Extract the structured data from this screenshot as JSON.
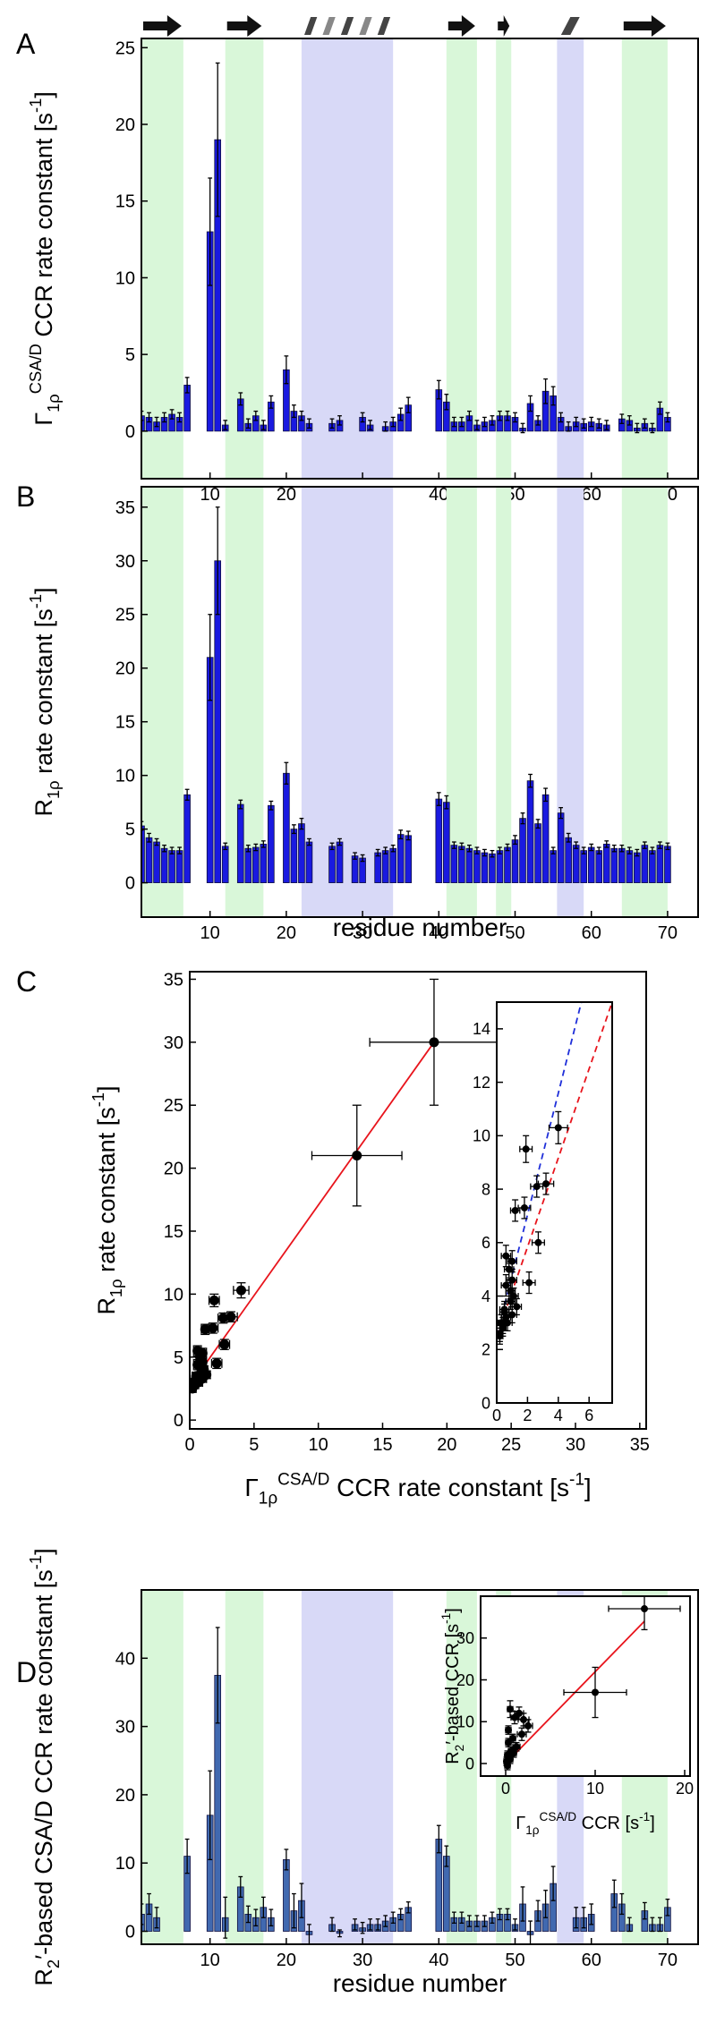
{
  "chart_data": [
    {
      "type": "bar",
      "label": "A",
      "ylabel": [
        {
          "t": "Γ"
        },
        {
          "t": "1ρ",
          "pos": "sub"
        },
        {
          "t": "CSA/D",
          "pos": "sup"
        },
        {
          "t": " CCR rate constant [s"
        },
        {
          "t": "-1",
          "pos": "sup"
        },
        {
          "t": "]"
        }
      ],
      "x": [
        1,
        2,
        3,
        4,
        5,
        6,
        7,
        8,
        9,
        10,
        11,
        12,
        13,
        14,
        15,
        16,
        17,
        18,
        19,
        20,
        21,
        22,
        23,
        24,
        25,
        26,
        27,
        28,
        29,
        30,
        31,
        32,
        33,
        34,
        35,
        36,
        37,
        38,
        39,
        40,
        41,
        42,
        43,
        44,
        45,
        46,
        47,
        48,
        49,
        50,
        51,
        52,
        53,
        54,
        55,
        56,
        57,
        58,
        59,
        60,
        61,
        62,
        63,
        64,
        65,
        66,
        67,
        68,
        69,
        70
      ],
      "values": [
        1.0,
        0.9,
        0.6,
        0.9,
        1.1,
        0.9,
        3.0,
        null,
        null,
        13,
        19,
        0.4,
        null,
        2.1,
        0.5,
        1.0,
        0.4,
        1.9,
        null,
        4.0,
        1.3,
        1.0,
        0.5,
        null,
        null,
        0.5,
        0.7,
        null,
        null,
        0.9,
        0.4,
        null,
        0.3,
        0.6,
        1.1,
        1.7,
        null,
        null,
        null,
        2.7,
        1.9,
        0.6,
        0.6,
        1.0,
        0.4,
        0.6,
        0.7,
        1.0,
        1.0,
        0.9,
        0.2,
        1.8,
        0.7,
        2.6,
        2.3,
        0.9,
        0.3,
        0.6,
        0.5,
        0.6,
        0.5,
        0.4,
        null,
        0.8,
        0.7,
        0.2,
        0.5,
        0.2,
        1.5,
        0.9
      ],
      "errors": [
        0.3,
        0.3,
        0.3,
        0.3,
        0.3,
        0.3,
        0.5,
        null,
        null,
        3.5,
        5,
        0.3,
        null,
        0.4,
        0.3,
        0.3,
        0.3,
        0.4,
        null,
        0.9,
        0.4,
        0.3,
        0.3,
        null,
        null,
        0.3,
        0.3,
        null,
        null,
        0.3,
        0.3,
        null,
        0.3,
        0.3,
        0.4,
        0.5,
        null,
        null,
        null,
        0.6,
        0.5,
        0.3,
        0.3,
        0.3,
        0.3,
        0.3,
        0.3,
        0.3,
        0.3,
        0.3,
        0.3,
        0.5,
        0.3,
        0.8,
        0.6,
        0.3,
        0.3,
        0.3,
        0.3,
        0.3,
        0.3,
        0.3,
        null,
        0.3,
        0.3,
        0.3,
        0.3,
        0.3,
        0.4,
        0.3
      ],
      "color": "#1a1ae0",
      "xlim": [
        1,
        74
      ],
      "ylim": [
        -3.1,
        25.6
      ],
      "xticks": [
        10,
        20,
        30,
        40,
        50,
        60,
        70
      ],
      "yticks": [
        0,
        5,
        10,
        15,
        20,
        25
      ],
      "strands": [
        [
          1,
          6.5
        ],
        [
          12,
          17
        ],
        [
          41,
          45
        ],
        [
          47.5,
          49.5
        ],
        [
          64,
          70
        ]
      ],
      "helices": [
        [
          22,
          34
        ],
        [
          55.5,
          59
        ]
      ],
      "strand_color": "#d9f7d9",
      "helix_color": "#d8d9f7",
      "structure_row": true
    },
    {
      "type": "bar",
      "label": "B",
      "ylabel": [
        {
          "t": "R"
        },
        {
          "t": "1ρ",
          "pos": "sub"
        },
        {
          "t": " rate constant [s"
        },
        {
          "t": "-1",
          "pos": "sup"
        },
        {
          "t": "]"
        }
      ],
      "xlabel": [
        {
          "t": "residue number"
        }
      ],
      "x": [
        1,
        2,
        3,
        4,
        5,
        6,
        7,
        8,
        9,
        10,
        11,
        12,
        13,
        14,
        15,
        16,
        17,
        18,
        19,
        20,
        21,
        22,
        23,
        24,
        25,
        26,
        27,
        28,
        29,
        30,
        31,
        32,
        33,
        34,
        35,
        36,
        37,
        38,
        39,
        40,
        41,
        42,
        43,
        44,
        45,
        46,
        47,
        48,
        49,
        50,
        51,
        52,
        53,
        54,
        55,
        56,
        57,
        58,
        59,
        60,
        61,
        62,
        63,
        64,
        65,
        66,
        67,
        68,
        69,
        70
      ],
      "values": [
        5.3,
        4.2,
        3.8,
        3.2,
        3.0,
        3.0,
        8.2,
        null,
        null,
        21,
        30,
        3.4,
        null,
        7.3,
        3.2,
        3.3,
        3.6,
        7.2,
        null,
        10.2,
        5.0,
        5.5,
        3.8,
        null,
        null,
        3.4,
        3.8,
        null,
        2.5,
        2.3,
        null,
        2.8,
        3.0,
        3.2,
        4.5,
        4.4,
        null,
        null,
        null,
        7.8,
        7.5,
        3.5,
        3.4,
        3.2,
        3.0,
        2.8,
        2.7,
        3.0,
        3.3,
        4.0,
        6.0,
        9.5,
        5.5,
        8.2,
        3.0,
        6.5,
        4.2,
        3.5,
        3.0,
        3.3,
        3.0,
        3.6,
        3.2,
        3.2,
        3.0,
        2.8,
        3.5,
        3.0,
        3.5,
        3.4
      ],
      "errors": [
        0.4,
        0.4,
        0.3,
        0.3,
        0.3,
        0.3,
        0.5,
        null,
        null,
        4,
        5,
        0.3,
        null,
        0.4,
        0.3,
        0.3,
        0.3,
        0.4,
        null,
        1.0,
        0.4,
        0.5,
        0.3,
        null,
        null,
        0.3,
        0.3,
        null,
        0.3,
        0.3,
        null,
        0.3,
        0.3,
        0.3,
        0.4,
        0.4,
        null,
        null,
        null,
        0.6,
        0.6,
        0.3,
        0.3,
        0.3,
        0.3,
        0.3,
        0.3,
        0.3,
        0.3,
        0.4,
        0.5,
        0.6,
        0.4,
        0.6,
        0.3,
        0.5,
        0.4,
        0.3,
        0.3,
        0.3,
        0.3,
        0.3,
        0.3,
        0.3,
        0.3,
        0.3,
        0.3,
        0.3,
        0.3,
        0.3
      ],
      "color": "#1a1ae0",
      "xlim": [
        1,
        74
      ],
      "ylim": [
        -3.2,
        36.9
      ],
      "xticks": [
        10,
        20,
        30,
        40,
        50,
        60,
        70
      ],
      "yticks": [
        0,
        5,
        10,
        15,
        20,
        25,
        30,
        35
      ],
      "strands": [
        [
          1,
          6.5
        ],
        [
          12,
          17
        ],
        [
          41,
          45
        ],
        [
          47.5,
          49.5
        ],
        [
          64,
          70
        ]
      ],
      "helices": [
        [
          22,
          34
        ],
        [
          55.5,
          59
        ]
      ],
      "strand_color": "#d9f7d9",
      "helix_color": "#d8d9f7"
    },
    {
      "type": "scatter",
      "label": "C",
      "ylabel": [
        {
          "t": "R"
        },
        {
          "t": "1ρ",
          "pos": "sub"
        },
        {
          "t": " rate constant [s"
        },
        {
          "t": "-1",
          "pos": "sup"
        },
        {
          "t": "]"
        }
      ],
      "xlabel": [
        {
          "t": "Γ"
        },
        {
          "t": "1ρ",
          "pos": "sub"
        },
        {
          "t": "CSA/D",
          "pos": "sup"
        },
        {
          "t": " CCR rate constant [s"
        },
        {
          "t": "-1",
          "pos": "sup"
        },
        {
          "t": "]"
        }
      ],
      "x": [
        13,
        19,
        4.0,
        1.9,
        2.7,
        3.2,
        1.8,
        1.2,
        2.6,
        1.0,
        0.6,
        0.9,
        1.1,
        0.5,
        0.3,
        0.4,
        0.6,
        0.9,
        1.0,
        0.2,
        0.5,
        0.7,
        1.0,
        0.4,
        0.6,
        0.3,
        0.8,
        0.2,
        2.1,
        1.3
      ],
      "y": [
        21,
        30,
        10.3,
        9.5,
        6.0,
        8.2,
        7.3,
        7.2,
        8.1,
        5.3,
        5.5,
        4.2,
        4.0,
        3.4,
        3.0,
        2.8,
        3.2,
        3.8,
        4.6,
        2.6,
        3.5,
        3.0,
        3.3,
        2.9,
        4.4,
        3.0,
        5.0,
        2.5,
        4.5,
        3.6
      ],
      "xerr": [
        3.5,
        5,
        0.6,
        0.4,
        0.4,
        0.5,
        0.4,
        0.3,
        0.4,
        0.3,
        0.3,
        0.3,
        0.3,
        0.3,
        0.2,
        0.2,
        0.3,
        0.3,
        0.3,
        0.2,
        0.3,
        0.3,
        0.3,
        0.2,
        0.3,
        0.2,
        0.3,
        0.2,
        0.4,
        0.3
      ],
      "yerr": [
        4,
        5,
        0.6,
        0.5,
        0.4,
        0.4,
        0.4,
        0.4,
        0.4,
        0.4,
        0.4,
        0.3,
        0.3,
        0.3,
        0.3,
        0.3,
        0.3,
        0.3,
        0.4,
        0.3,
        0.3,
        0.3,
        0.3,
        0.3,
        0.4,
        0.3,
        0.4,
        0.3,
        0.4,
        0.3
      ],
      "color": "#000000",
      "xlim": [
        0,
        35.5
      ],
      "ylim": [
        -0.7,
        35.6
      ],
      "xticks": [
        0,
        5,
        10,
        15,
        20,
        25,
        30,
        35
      ],
      "yticks": [
        0,
        5,
        10,
        15,
        20,
        25,
        30,
        35
      ],
      "lines": [
        {
          "x": [
            0,
            19
          ],
          "y": [
            2.7,
            30
          ],
          "color": "#e8141c"
        }
      ],
      "inset": {
        "xlim": [
          0,
          7.5
        ],
        "ylim": [
          0,
          15
        ],
        "xticks": [
          0,
          2,
          4,
          6
        ],
        "yticks": [
          0,
          2,
          4,
          6,
          8,
          10,
          12,
          14
        ],
        "lines": [
          {
            "x": [
              0,
              5.5
            ],
            "y": [
              2.5,
              15
            ],
            "color": "#1f2fd9",
            "dash": true
          },
          {
            "x": [
              0,
              7.5
            ],
            "y": [
              2.5,
              15
            ],
            "color": "#e8141c",
            "dash": true
          }
        ]
      }
    },
    {
      "type": "bar",
      "label": "D",
      "ylabel": [
        {
          "t": "R"
        },
        {
          "t": "2",
          "pos": "sub"
        },
        {
          "t": "′-based CSA/D CCR rate constant [s"
        },
        {
          "t": "-1",
          "pos": "sup"
        },
        {
          "t": "]"
        }
      ],
      "xlabel": [
        {
          "t": "residue number"
        }
      ],
      "x": [
        1,
        2,
        3,
        4,
        5,
        6,
        7,
        8,
        9,
        10,
        11,
        12,
        13,
        14,
        15,
        16,
        17,
        18,
        19,
        20,
        21,
        22,
        23,
        24,
        25,
        26,
        27,
        28,
        29,
        30,
        31,
        32,
        33,
        34,
        35,
        36,
        37,
        38,
        39,
        40,
        41,
        42,
        43,
        44,
        45,
        46,
        47,
        48,
        49,
        50,
        51,
        52,
        53,
        54,
        55,
        56,
        57,
        58,
        59,
        60,
        61,
        62,
        63,
        64,
        65,
        66,
        67,
        68,
        69,
        70
      ],
      "values": [
        2.5,
        4,
        2,
        null,
        null,
        null,
        11,
        null,
        null,
        17,
        37.5,
        2,
        null,
        6.5,
        2.5,
        2,
        3.5,
        2,
        null,
        10.5,
        3,
        4.5,
        -0.5,
        null,
        null,
        1,
        -0.3,
        null,
        1,
        0.5,
        1,
        1,
        1.5,
        2,
        2.5,
        3.5,
        null,
        null,
        null,
        13.5,
        11,
        2,
        2,
        1.5,
        1.5,
        1.5,
        2,
        2.5,
        2.5,
        1,
        4,
        -0.5,
        3,
        4,
        7,
        null,
        null,
        2,
        2,
        2.5,
        null,
        null,
        5.5,
        4,
        1,
        null,
        3,
        1,
        1,
        3.5
      ],
      "errors": [
        1.5,
        1.5,
        1.5,
        null,
        null,
        null,
        2.5,
        null,
        null,
        6.5,
        7,
        3,
        null,
        1.5,
        1.2,
        1.2,
        1.5,
        1.2,
        null,
        1.5,
        2.5,
        2.5,
        1.5,
        null,
        null,
        1,
        0.5,
        null,
        0.8,
        0.8,
        0.8,
        0.8,
        0.8,
        0.8,
        0.8,
        0.8,
        null,
        null,
        null,
        2,
        1.5,
        0.8,
        0.8,
        0.8,
        0.8,
        0.8,
        0.8,
        0.8,
        0.8,
        0.8,
        2.5,
        2,
        1.5,
        2,
        2.5,
        null,
        null,
        1.5,
        1.5,
        1.5,
        null,
        null,
        2,
        1.5,
        1,
        null,
        1.2,
        1,
        1,
        1.2
      ],
      "color": "#4169b0",
      "xlim": [
        1,
        74
      ],
      "ylim": [
        -1.9,
        50
      ],
      "xticks": [
        10,
        20,
        30,
        40,
        50,
        60,
        70
      ],
      "yticks": [
        0,
        10,
        20,
        30,
        40
      ],
      "strands": [
        [
          1,
          6.5
        ],
        [
          12,
          17
        ],
        [
          41,
          45
        ],
        [
          47.5,
          49.5
        ],
        [
          64,
          70
        ]
      ],
      "helices": [
        [
          22,
          34
        ],
        [
          55.5,
          59
        ]
      ],
      "strand_color": "#d9f7d9",
      "helix_color": "#d8d9f7",
      "inset": {
        "type": "scatter",
        "ylabel": [
          {
            "t": "R"
          },
          {
            "t": "2",
            "pos": "sub"
          },
          {
            "t": "′-based CCR [s"
          },
          {
            "t": "-1",
            "pos": "sup"
          },
          {
            "t": "]"
          }
        ],
        "xlabel": [
          {
            "t": "Γ"
          },
          {
            "t": "1ρ",
            "pos": "sub"
          },
          {
            "t": "CSA/D",
            "pos": "sup"
          },
          {
            "t": " CCR [s"
          },
          {
            "t": "-1",
            "pos": "sup"
          },
          {
            "t": "]"
          }
        ],
        "x": [
          15.5,
          10,
          1,
          1.5,
          2,
          0.5,
          0.3,
          0.8,
          0.2,
          1.2,
          0.6,
          0.4,
          0.9,
          0.1,
          0.3,
          2.5,
          1.8,
          0.7,
          0.5,
          0.2
        ],
        "y": [
          37,
          17,
          11,
          12,
          10.5,
          13,
          5,
          6,
          2,
          4,
          3,
          1.5,
          2.5,
          0.5,
          8,
          9,
          7,
          3,
          1,
          -0.5
        ],
        "xerr": [
          4,
          3.5,
          0.4,
          0.5,
          0.6,
          0.3,
          0.3,
          0.3,
          0.3,
          0.4,
          0.3,
          0.3,
          0.3,
          0.3,
          0.3,
          0.5,
          0.5,
          0.3,
          0.3,
          0.3
        ],
        "yerr": [
          5,
          6,
          1.5,
          1.5,
          1.5,
          2,
          1,
          1,
          1,
          1,
          1,
          1,
          1,
          1,
          1,
          1.5,
          1.5,
          1,
          1,
          1
        ],
        "xlim": [
          -2.8,
          20.6
        ],
        "ylim": [
          -3,
          40
        ],
        "xticks": [
          0,
          10,
          20
        ],
        "yticks": [
          0,
          10,
          20,
          30
        ],
        "lines": [
          {
            "x": [
              0,
              15.5
            ],
            "y": [
              0,
              34
            ],
            "color": "#e8141c"
          }
        ]
      }
    }
  ]
}
